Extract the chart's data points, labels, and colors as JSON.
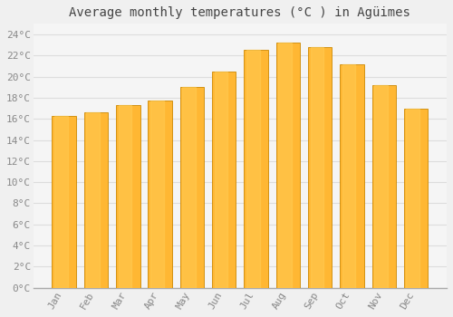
{
  "title": "Average monthly temperatures (°C ) in Agüimes",
  "months": [
    "Jan",
    "Feb",
    "Mar",
    "Apr",
    "May",
    "Jun",
    "Jul",
    "Aug",
    "Sep",
    "Oct",
    "Nov",
    "Dec"
  ],
  "values": [
    16.3,
    16.6,
    17.3,
    17.7,
    19.0,
    20.5,
    22.5,
    23.2,
    22.8,
    21.2,
    19.2,
    17.0
  ],
  "bar_color": "#FFA500",
  "bar_face_color": "#FFB733",
  "bar_edge_color": "#CC8800",
  "background_color": "#F0F0F0",
  "plot_bg_color": "#F5F5F5",
  "grid_color": "#DDDDDD",
  "text_color": "#888888",
  "title_color": "#444444",
  "ylim": [
    0,
    25
  ],
  "yticks": [
    0,
    2,
    4,
    6,
    8,
    10,
    12,
    14,
    16,
    18,
    20,
    22,
    24
  ],
  "ytick_labels": [
    "0°C",
    "2°C",
    "4°C",
    "6°C",
    "8°C",
    "10°C",
    "12°C",
    "14°C",
    "16°C",
    "18°C",
    "20°C",
    "22°C",
    "24°C"
  ],
  "title_fontsize": 10,
  "tick_fontsize": 8,
  "font_family": "monospace"
}
